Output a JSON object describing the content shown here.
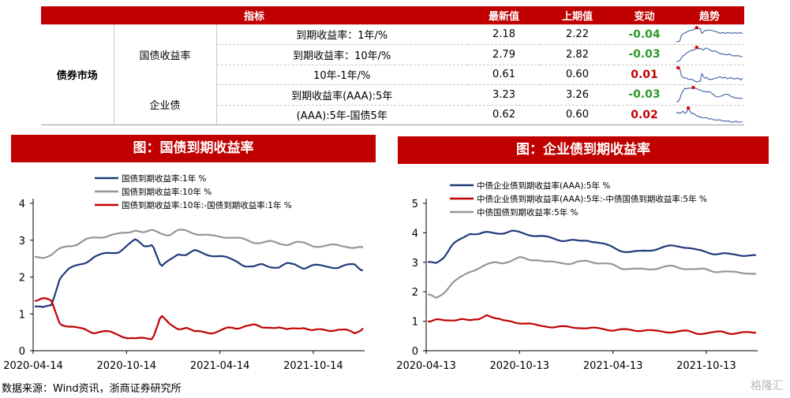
{
  "table": {
    "headers": [
      "指标",
      "最新值",
      "上期值",
      "变动",
      "趋势"
    ],
    "market": "债券市场",
    "groups": [
      "国债收益率",
      "企业债"
    ],
    "rows": [
      {
        "name": "到期收益率：1年/%",
        "latest": "2.18",
        "prev": "2.22",
        "change": "-0.04",
        "dir": "neg"
      },
      {
        "name": "到期收益率：10年/%",
        "latest": "2.79",
        "prev": "2.82",
        "change": "-0.03",
        "dir": "neg"
      },
      {
        "name": "10年-1年/%",
        "latest": "0.61",
        "prev": "0.60",
        "change": "0.01",
        "dir": "pos"
      },
      {
        "name": "到期收益率(AAA):5年",
        "latest": "3.23",
        "prev": "3.26",
        "change": "-0.03",
        "dir": "neg"
      },
      {
        "name": "(AAA):5年-国债5年",
        "latest": "0.62",
        "prev": "0.60",
        "change": "0.02",
        "dir": "pos"
      }
    ]
  },
  "left_title": "图：国债到期收益率",
  "right_title": "图：企业债到期收益率",
  "source": "数据来源：Wind资讯，浙商证券研究所",
  "watermark": "格隆汇",
  "colors": {
    "navy": "#1f3a7a",
    "gray": "#969696",
    "red": "#c00000",
    "banner": "#c00000"
  },
  "chart_data": [
    {
      "type": "line",
      "title": "图：国债到期收益率",
      "ylim": [
        0,
        4
      ],
      "yticks": [
        "0",
        "1",
        "2",
        "3",
        "4"
      ],
      "xticks": [
        "2020-04-14",
        "2020-10-14",
        "2021-04-14",
        "2021-10-14"
      ],
      "series": [
        {
          "name": "国债到期收益率:1年 %",
          "color": "#1f3a7a",
          "values": [
            1.2,
            1.15,
            1.25,
            2.0,
            2.2,
            2.3,
            2.4,
            2.55,
            2.6,
            2.65,
            2.7,
            2.85,
            3.0,
            2.85,
            2.9,
            2.25,
            2.45,
            2.65,
            2.6,
            2.7,
            2.65,
            2.6,
            2.55,
            2.5,
            2.45,
            2.3,
            2.25,
            2.35,
            2.3,
            2.25,
            2.35,
            2.35,
            2.25,
            2.3,
            2.3,
            2.3,
            2.25,
            2.3,
            2.35,
            2.18
          ]
        },
        {
          "name": "国债到期收益率:10年 %",
          "color": "#969696",
          "values": [
            2.55,
            2.55,
            2.6,
            2.75,
            2.85,
            2.9,
            3.0,
            3.05,
            3.1,
            3.15,
            3.15,
            3.2,
            3.3,
            3.2,
            3.25,
            3.2,
            3.15,
            3.25,
            3.25,
            3.2,
            3.15,
            3.1,
            3.1,
            3.1,
            3.05,
            3.0,
            2.95,
            2.95,
            2.95,
            2.9,
            2.9,
            2.95,
            2.9,
            2.85,
            2.85,
            2.85,
            2.85,
            2.85,
            2.8,
            2.79
          ]
        },
        {
          "name": "国债到期收益率:10年:-国债到期收益率:1年 %",
          "color": "#c00000",
          "values": [
            1.35,
            1.4,
            1.35,
            0.75,
            0.65,
            0.6,
            0.6,
            0.5,
            0.5,
            0.5,
            0.45,
            0.35,
            0.3,
            0.35,
            0.35,
            0.95,
            0.7,
            0.6,
            0.65,
            0.5,
            0.5,
            0.5,
            0.55,
            0.6,
            0.6,
            0.7,
            0.7,
            0.6,
            0.65,
            0.65,
            0.55,
            0.6,
            0.65,
            0.55,
            0.55,
            0.55,
            0.6,
            0.55,
            0.45,
            0.61
          ]
        }
      ]
    },
    {
      "type": "line",
      "title": "图：企业债到期收益率",
      "ylim": [
        0,
        5
      ],
      "yticks": [
        "0",
        "1",
        "2",
        "3",
        "4",
        "5"
      ],
      "xticks": [
        "2020-04-13",
        "2020-10-13",
        "2021-04-13",
        "2021-10-13"
      ],
      "series": [
        {
          "name": "中债企业债到期收益率(AAA):5年 %",
          "color": "#1f3a7a",
          "values": [
            3.0,
            3.0,
            3.2,
            3.6,
            3.8,
            4.0,
            3.95,
            4.0,
            4.0,
            4.0,
            4.05,
            4.0,
            3.95,
            3.9,
            3.85,
            3.8,
            3.75,
            3.75,
            3.7,
            3.75,
            3.7,
            3.6,
            3.5,
            3.4,
            3.35,
            3.35,
            3.4,
            3.45,
            3.5,
            3.55,
            3.55,
            3.5,
            3.4,
            3.35,
            3.3,
            3.3,
            3.25,
            3.25,
            3.25,
            3.23
          ]
        },
        {
          "name": "中债企业债到期收益率(AAA):5年:-中债国债到期收益率:5年 %",
          "color": "#c00000",
          "values": [
            1.0,
            1.05,
            1.0,
            1.05,
            1.1,
            1.0,
            1.05,
            1.25,
            1.1,
            1.0,
            1.0,
            0.95,
            0.9,
            0.85,
            0.85,
            0.8,
            0.8,
            0.8,
            0.8,
            0.75,
            0.75,
            0.75,
            0.7,
            0.7,
            0.7,
            0.7,
            0.7,
            0.65,
            0.65,
            0.65,
            0.65,
            0.65,
            0.6,
            0.6,
            0.6,
            0.65,
            0.6,
            0.6,
            0.6,
            0.62
          ]
        },
        {
          "name": "中债国债到期收益率:5年 %",
          "color": "#969696",
          "values": [
            1.9,
            1.8,
            2.0,
            2.3,
            2.5,
            2.7,
            2.8,
            2.9,
            3.0,
            3.0,
            3.05,
            3.15,
            3.1,
            3.1,
            3.0,
            3.0,
            3.0,
            2.95,
            3.0,
            3.05,
            3.0,
            2.95,
            2.9,
            2.8,
            2.8,
            2.75,
            2.75,
            2.8,
            2.85,
            2.85,
            2.8,
            2.8,
            2.75,
            2.75,
            2.7,
            2.7,
            2.65,
            2.65,
            2.65,
            2.61
          ]
        }
      ]
    }
  ]
}
